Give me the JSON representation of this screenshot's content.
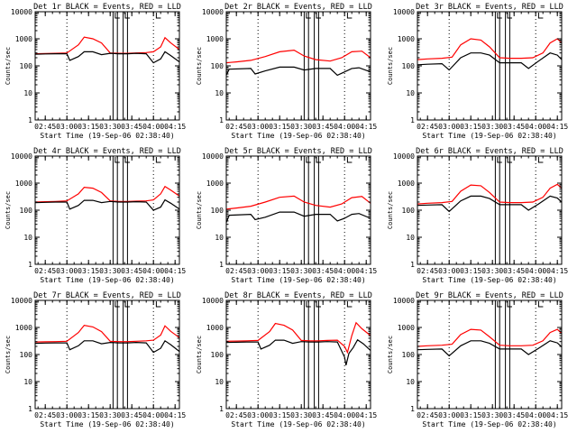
{
  "chart_data": [
    {
      "type": "line",
      "title": "Det 1r BLACK = Events, RED = LLD",
      "ylabel": "Counts/sec",
      "xlabel": "Start Time (19-Sep-06 02:38:40)",
      "yscale": "log",
      "ylim": [
        1,
        10000
      ],
      "xlim": [
        "02:38",
        "04:18"
      ],
      "x_ticks": [
        "02:45",
        "03:00",
        "03:15",
        "03:30",
        "03:45",
        "04:00",
        "04:15"
      ],
      "y_ticks": [
        "1",
        "10",
        "100",
        "1000",
        "10000"
      ],
      "series": [
        {
          "color": "#ff0000",
          "x": [
            "02:38",
            "02:45",
            "02:52",
            "03:00",
            "03:08",
            "03:12",
            "03:18",
            "03:24",
            "03:30",
            "03:36",
            "03:42",
            "03:48",
            "03:55",
            "04:00",
            "04:05",
            "04:08",
            "04:12",
            "04:18"
          ],
          "values": [
            280,
            285,
            290,
            300,
            600,
            1150,
            1000,
            700,
            300,
            290,
            290,
            300,
            310,
            330,
            500,
            1100,
            700,
            400
          ]
        },
        {
          "color": "#000000",
          "x": [
            "02:38",
            "02:45",
            "02:52",
            "03:00",
            "03:02",
            "03:08",
            "03:12",
            "03:18",
            "03:24",
            "03:30",
            "03:36",
            "03:42",
            "03:48",
            "03:55",
            "04:00",
            "04:05",
            "04:08",
            "04:12",
            "04:18"
          ],
          "values": [
            270,
            275,
            280,
            280,
            160,
            220,
            330,
            330,
            260,
            290,
            280,
            280,
            290,
            280,
            130,
            180,
            330,
            240,
            140
          ]
        }
      ]
    },
    {
      "type": "line",
      "title": "Det 2r BLACK = Events, RED = LLD",
      "ylabel": "Counts/sec",
      "xlabel": "Start Time (19-Sep-06 02:38:40)",
      "yscale": "log",
      "ylim": [
        1,
        10000
      ],
      "xlim": [
        "02:38",
        "04:18"
      ],
      "x_ticks": [
        "02:45",
        "03:00",
        "03:15",
        "03:30",
        "03:45",
        "04:00",
        "04:15"
      ],
      "y_ticks": [
        "1",
        "10",
        "100",
        "1000",
        "10000"
      ],
      "series": [
        {
          "color": "#ff0000",
          "x": [
            "02:38",
            "02:45",
            "02:55",
            "03:05",
            "03:15",
            "03:25",
            "03:32",
            "03:40",
            "03:50",
            "03:58",
            "04:05",
            "04:12",
            "04:18"
          ],
          "values": [
            130,
            140,
            160,
            220,
            330,
            380,
            230,
            170,
            150,
            200,
            330,
            350,
            200
          ]
        },
        {
          "color": "#000000",
          "x": [
            "02:38",
            "02:40",
            "02:55",
            "02:58",
            "03:05",
            "03:15",
            "03:25",
            "03:32",
            "03:40",
            "03:50",
            "03:55",
            "04:00",
            "04:05",
            "04:10",
            "04:18"
          ],
          "values": [
            45,
            75,
            80,
            50,
            65,
            90,
            90,
            70,
            80,
            80,
            45,
            60,
            80,
            85,
            60
          ]
        }
      ]
    },
    {
      "type": "line",
      "title": "Det 3r BLACK = Events, RED = LLD",
      "ylabel": "Counts/sec",
      "xlabel": "Start Time (19-Sep-06 02:38:40)",
      "yscale": "log",
      "ylim": [
        1,
        10000
      ],
      "xlim": [
        "02:38",
        "04:18"
      ],
      "x_ticks": [
        "02:45",
        "03:00",
        "03:15",
        "03:30",
        "03:45",
        "04:00",
        "04:15"
      ],
      "y_ticks": [
        "1",
        "10",
        "100",
        "1000",
        "10000"
      ],
      "series": [
        {
          "color": "#ff0000",
          "x": [
            "02:38",
            "02:45",
            "02:55",
            "03:02",
            "03:08",
            "03:15",
            "03:22",
            "03:28",
            "03:35",
            "03:42",
            "03:50",
            "03:58",
            "04:05",
            "04:10",
            "04:15",
            "04:18"
          ],
          "values": [
            170,
            180,
            190,
            210,
            600,
            1000,
            900,
            500,
            200,
            190,
            190,
            200,
            300,
            700,
            1000,
            700
          ]
        },
        {
          "color": "#000000",
          "x": [
            "02:38",
            "02:45",
            "02:55",
            "03:00",
            "03:08",
            "03:15",
            "03:22",
            "03:28",
            "03:35",
            "03:42",
            "03:50",
            "03:55",
            "04:02",
            "04:10",
            "04:15",
            "04:18"
          ],
          "values": [
            110,
            115,
            120,
            70,
            200,
            300,
            300,
            250,
            130,
            130,
            130,
            80,
            150,
            300,
            250,
            170
          ]
        }
      ]
    },
    {
      "type": "line",
      "title": "Det 4r BLACK = Events, RED = LLD",
      "ylabel": "Counts/sec",
      "xlabel": "Start Time (19-Sep-06 02:38:40)",
      "yscale": "log",
      "ylim": [
        1,
        10000
      ],
      "xlim": [
        "02:38",
        "04:18"
      ],
      "x_ticks": [
        "02:45",
        "03:00",
        "03:15",
        "03:30",
        "03:45",
        "04:00",
        "04:15"
      ],
      "y_ticks": [
        "1",
        "10",
        "100",
        "1000",
        "10000"
      ],
      "series": [
        {
          "color": "#ff0000",
          "x": [
            "02:38",
            "02:45",
            "02:52",
            "03:00",
            "03:08",
            "03:12",
            "03:18",
            "03:24",
            "03:30",
            "03:36",
            "03:42",
            "03:48",
            "03:55",
            "04:00",
            "04:05",
            "04:08",
            "04:12",
            "04:18"
          ],
          "values": [
            200,
            205,
            210,
            220,
            400,
            700,
            650,
            450,
            220,
            210,
            210,
            215,
            220,
            240,
            400,
            750,
            550,
            330
          ]
        },
        {
          "color": "#000000",
          "x": [
            "02:38",
            "02:45",
            "02:52",
            "03:00",
            "03:02",
            "03:08",
            "03:12",
            "03:18",
            "03:24",
            "03:30",
            "03:36",
            "03:42",
            "03:48",
            "03:55",
            "04:00",
            "04:05",
            "04:08",
            "04:12",
            "04:18"
          ],
          "values": [
            190,
            195,
            200,
            200,
            110,
            150,
            230,
            230,
            190,
            210,
            200,
            200,
            205,
            200,
            100,
            130,
            240,
            180,
            110
          ]
        }
      ]
    },
    {
      "type": "line",
      "title": "Det 5r BLACK = Events, RED = LLD",
      "ylabel": "Counts/sec",
      "xlabel": "Start Time (19-Sep-06 02:38:40)",
      "yscale": "log",
      "ylim": [
        1,
        10000
      ],
      "xlim": [
        "02:38",
        "04:18"
      ],
      "x_ticks": [
        "02:45",
        "03:00",
        "03:15",
        "03:30",
        "03:45",
        "04:00",
        "04:15"
      ],
      "y_ticks": [
        "1",
        "10",
        "100",
        "1000",
        "10000"
      ],
      "series": [
        {
          "color": "#ff0000",
          "x": [
            "02:38",
            "02:45",
            "02:55",
            "03:05",
            "03:15",
            "03:25",
            "03:32",
            "03:40",
            "03:50",
            "03:58",
            "04:05",
            "04:12",
            "04:18"
          ],
          "values": [
            110,
            120,
            140,
            200,
            300,
            330,
            200,
            150,
            130,
            170,
            290,
            320,
            180
          ]
        },
        {
          "color": "#000000",
          "x": [
            "02:38",
            "02:40",
            "02:55",
            "02:58",
            "03:05",
            "03:15",
            "03:25",
            "03:32",
            "03:40",
            "03:50",
            "03:55",
            "04:00",
            "04:05",
            "04:10",
            "04:18"
          ],
          "values": [
            35,
            65,
            70,
            45,
            55,
            85,
            85,
            60,
            70,
            70,
            40,
            50,
            70,
            75,
            50
          ]
        }
      ]
    },
    {
      "type": "line",
      "title": "Det 6r BLACK = Events, RED = LLD",
      "ylabel": "Counts/sec",
      "xlabel": "Start Time (19-Sep-06 02:38:40)",
      "yscale": "log",
      "ylim": [
        1,
        10000
      ],
      "xlim": [
        "02:38",
        "04:18"
      ],
      "x_ticks": [
        "02:45",
        "03:00",
        "03:15",
        "03:30",
        "03:45",
        "04:00",
        "04:15"
      ],
      "y_ticks": [
        "1",
        "10",
        "100",
        "1000",
        "10000"
      ],
      "series": [
        {
          "color": "#ff0000",
          "x": [
            "02:38",
            "02:45",
            "02:55",
            "03:02",
            "03:08",
            "03:15",
            "03:22",
            "03:28",
            "03:35",
            "03:42",
            "03:50",
            "03:58",
            "04:05",
            "04:10",
            "04:15",
            "04:18"
          ],
          "values": [
            170,
            180,
            190,
            210,
            500,
            850,
            800,
            450,
            200,
            190,
            190,
            200,
            300,
            650,
            900,
            650
          ]
        },
        {
          "color": "#000000",
          "x": [
            "02:38",
            "02:45",
            "02:55",
            "03:00",
            "03:08",
            "03:15",
            "03:22",
            "03:28",
            "03:35",
            "03:42",
            "03:50",
            "03:55",
            "04:02",
            "04:10",
            "04:15",
            "04:18"
          ],
          "values": [
            150,
            155,
            160,
            90,
            220,
            330,
            330,
            270,
            160,
            160,
            160,
            100,
            170,
            330,
            280,
            200
          ]
        }
      ]
    },
    {
      "type": "line",
      "title": "Det 7r BLACK = Events, RED = LLD",
      "ylabel": "Counts/sec",
      "xlabel": "Start Time (19-Sep-06 02:38:40)",
      "yscale": "log",
      "ylim": [
        1,
        10000
      ],
      "xlim": [
        "02:38",
        "04:18"
      ],
      "x_ticks": [
        "02:45",
        "03:00",
        "03:15",
        "03:30",
        "03:45",
        "04:00",
        "04:15"
      ],
      "y_ticks": [
        "1",
        "10",
        "100",
        "1000",
        "10000"
      ],
      "series": [
        {
          "color": "#ff0000",
          "x": [
            "02:38",
            "02:45",
            "02:52",
            "03:00",
            "03:08",
            "03:12",
            "03:18",
            "03:24",
            "03:30",
            "03:36",
            "03:42",
            "03:48",
            "03:55",
            "04:00",
            "04:05",
            "04:08",
            "04:12",
            "04:18"
          ],
          "values": [
            290,
            295,
            300,
            310,
            650,
            1200,
            1050,
            700,
            310,
            300,
            300,
            310,
            320,
            340,
            520,
            1150,
            720,
            420
          ]
        },
        {
          "color": "#000000",
          "x": [
            "02:38",
            "02:45",
            "02:52",
            "03:00",
            "03:02",
            "03:08",
            "03:12",
            "03:18",
            "03:24",
            "03:30",
            "03:36",
            "03:42",
            "03:48",
            "03:55",
            "04:00",
            "04:05",
            "04:08",
            "04:12",
            "04:18"
          ],
          "values": [
            260,
            265,
            270,
            270,
            150,
            210,
            320,
            320,
            250,
            280,
            270,
            270,
            280,
            270,
            120,
            170,
            320,
            230,
            130
          ]
        }
      ]
    },
    {
      "type": "line",
      "title": "Det 8r BLACK = Events, RED = LLD",
      "ylabel": "Counts/sec",
      "xlabel": "Start Time (19-Sep-06 02:38:40)",
      "yscale": "log",
      "ylim": [
        1,
        10000
      ],
      "xlim": [
        "02:38",
        "04:18"
      ],
      "x_ticks": [
        "02:45",
        "03:00",
        "03:15",
        "03:30",
        "03:45",
        "04:00",
        "04:15"
      ],
      "y_ticks": [
        "1",
        "10",
        "100",
        "1000",
        "10000"
      ],
      "series": [
        {
          "color": "#ff0000",
          "x": [
            "02:38",
            "02:45",
            "02:52",
            "03:00",
            "03:08",
            "03:12",
            "03:18",
            "03:24",
            "03:30",
            "03:36",
            "03:42",
            "03:48",
            "03:55",
            "04:00",
            "04:02",
            "04:05",
            "04:08",
            "04:12",
            "04:18"
          ],
          "values": [
            310,
            315,
            320,
            330,
            700,
            1400,
            1200,
            800,
            330,
            320,
            320,
            330,
            340,
            200,
            120,
            500,
            1500,
            900,
            500
          ]
        },
        {
          "color": "#000000",
          "x": [
            "02:38",
            "02:45",
            "02:52",
            "03:00",
            "03:02",
            "03:08",
            "03:12",
            "03:18",
            "03:24",
            "03:30",
            "03:36",
            "03:42",
            "03:48",
            "03:55",
            "04:00",
            "04:01",
            "04:03",
            "04:06",
            "04:09",
            "04:13",
            "04:18"
          ],
          "values": [
            280,
            285,
            290,
            290,
            160,
            220,
            340,
            340,
            260,
            300,
            290,
            290,
            300,
            290,
            80,
            40,
            110,
            180,
            350,
            250,
            140
          ]
        }
      ]
    },
    {
      "type": "line",
      "title": "Det 9r BLACK = Events, RED = LLD",
      "ylabel": "Counts/sec",
      "xlabel": "Start Time (19-Sep-06 02:38:40)",
      "yscale": "log",
      "ylim": [
        1,
        10000
      ],
      "xlim": [
        "02:38",
        "04:18"
      ],
      "x_ticks": [
        "02:45",
        "03:00",
        "03:15",
        "03:30",
        "03:45",
        "04:00",
        "04:15"
      ],
      "y_ticks": [
        "1",
        "10",
        "100",
        "1000",
        "10000"
      ],
      "series": [
        {
          "color": "#ff0000",
          "x": [
            "02:38",
            "02:45",
            "02:55",
            "03:02",
            "03:08",
            "03:15",
            "03:22",
            "03:28",
            "03:35",
            "03:42",
            "03:50",
            "03:58",
            "04:05",
            "04:10",
            "04:15",
            "04:18"
          ],
          "values": [
            200,
            210,
            220,
            240,
            550,
            850,
            800,
            450,
            220,
            210,
            210,
            220,
            320,
            650,
            850,
            600
          ]
        },
        {
          "color": "#000000",
          "x": [
            "02:38",
            "02:45",
            "02:55",
            "03:00",
            "03:08",
            "03:15",
            "03:22",
            "03:28",
            "03:35",
            "03:42",
            "03:50",
            "03:55",
            "04:02",
            "04:10",
            "04:15",
            "04:18"
          ],
          "values": [
            150,
            155,
            160,
            90,
            210,
            320,
            320,
            260,
            160,
            160,
            160,
            100,
            170,
            320,
            270,
            190
          ]
        }
      ]
    }
  ]
}
